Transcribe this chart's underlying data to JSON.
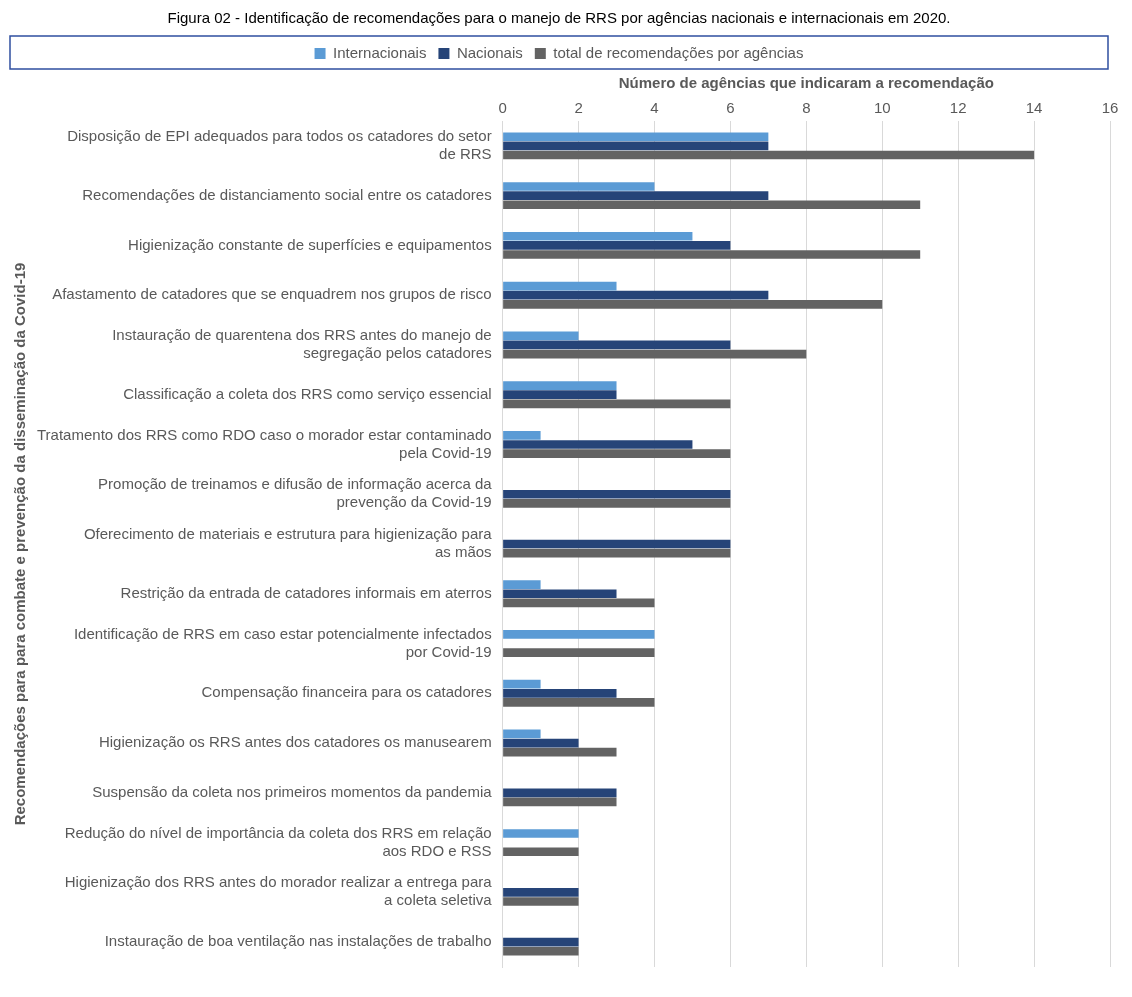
{
  "chart_data": {
    "type": "bar",
    "orientation": "horizontal",
    "title": "Figura 02 - Identificação de recomendações para o manejo de RRS por agências nacionais e internacionais em 2020.",
    "xlabel": "Número de agências que indicaram a recomendação",
    "ylabel": "Recomendações para para combate e prevenção da disseminação da Covid-19",
    "categories": [
      "Disposição de EPI adequados para todos os catadores do setor de RRS",
      "Recomendações de distanciamento social entre os catadores",
      "Higienização constante de superfícies e equipamentos",
      "Afastamento de catadores que se enquadrem nos grupos de risco",
      "Instauração de quarentena dos RRS antes do manejo de segregação pelos catadores",
      "Classificação a coleta dos RRS como serviço essencial",
      "Tratamento dos RRS como RDO caso o morador estar contaminado pela Covid-19",
      "Promoção de treinamos e difusão de informação acerca da prevenção da Covid-19",
      "Oferecimento de materiais e estrutura para higienização para as mãos",
      "Restrição da entrada de catadores informais em aterros",
      "Identificação de RRS em caso estar potencialmente infectados por Covid-19",
      "Compensação financeira para os catadores",
      "Higienização os RRS antes dos catadores os manusearem",
      "Suspensão da coleta nos primeiros momentos da pandemia",
      "Redução do nível de importância da coleta dos RRS em relação aos RDO e RSS",
      "Higienização dos RRS antes do morador realizar a entrega para a coleta seletiva",
      "Instauração de boa ventilação nas instalações de trabalho"
    ],
    "series": [
      {
        "name": "Internacionais",
        "color": "#5b9bd5",
        "values": [
          7,
          4,
          5,
          3,
          2,
          3,
          1,
          null,
          null,
          1,
          4,
          1,
          1,
          null,
          2,
          null,
          null
        ]
      },
      {
        "name": "Nacionais",
        "color": "#264478",
        "values": [
          7,
          7,
          6,
          7,
          6,
          3,
          5,
          6,
          6,
          3,
          null,
          3,
          2,
          3,
          null,
          2,
          2
        ]
      },
      {
        "name": "total de recomendações por agências",
        "color": "#636363",
        "values": [
          14,
          11,
          11,
          10,
          8,
          6,
          6,
          6,
          6,
          4,
          4,
          4,
          3,
          3,
          2,
          2,
          2
        ]
      }
    ],
    "xlim": [
      0,
      16
    ],
    "xticks": [
      0,
      2,
      4,
      6,
      8,
      10,
      12,
      14,
      16
    ],
    "grid": "x",
    "legend": "top"
  }
}
